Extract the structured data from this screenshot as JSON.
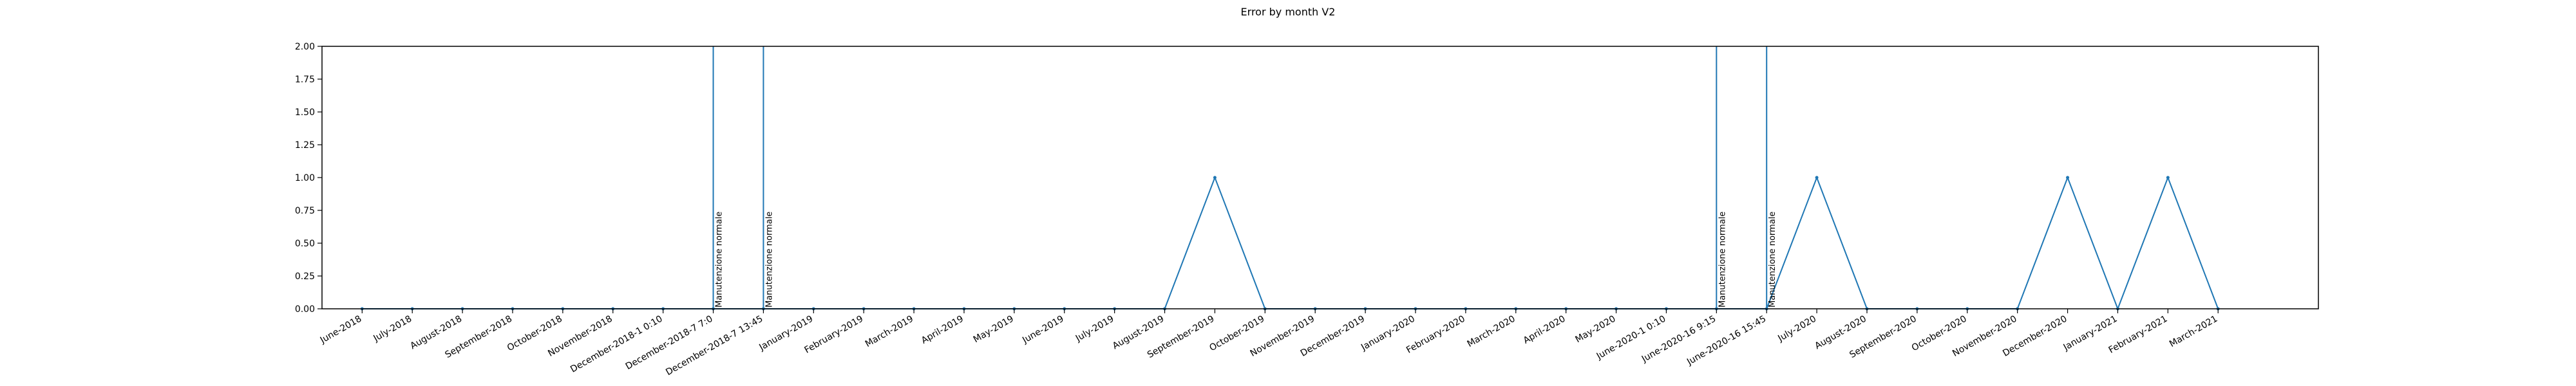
{
  "chart_data": {
    "type": "line",
    "title": "Error by month V2",
    "xlabel": "",
    "ylabel": "",
    "ylim": [
      0,
      2
    ],
    "xlim": [
      -0.8,
      39.0
    ],
    "y_ticks": [
      "0.00",
      "0.25",
      "0.50",
      "0.75",
      "1.00",
      "1.25",
      "1.50",
      "1.75",
      "2.00"
    ],
    "grid": false,
    "legend": "none",
    "line_color": "#1f77b4",
    "categories": [
      "June-2018",
      "July-2018",
      "August-2018",
      "September-2018",
      "October-2018",
      "November-2018",
      "December-2018-1 0:10",
      "December-2018-7 7:0",
      "December-2018-7 13:45",
      "January-2019",
      "February-2019",
      "March-2019",
      "April-2019",
      "May-2019",
      "June-2019",
      "July-2019",
      "August-2019",
      "September-2019",
      "October-2019",
      "November-2019",
      "December-2019",
      "January-2020",
      "February-2020",
      "March-2020",
      "April-2020",
      "May-2020",
      "June-2020-1 0:10",
      "June-2020-16 9:15",
      "June-2020-16 15:45",
      "July-2020",
      "August-2020",
      "September-2020",
      "October-2020",
      "November-2020",
      "December-2020",
      "January-2021",
      "February-2021",
      "March-2021"
    ],
    "values": [
      0,
      0,
      0,
      0,
      0,
      0,
      0,
      0,
      0,
      0,
      0,
      0,
      0,
      0,
      0,
      0,
      0,
      1,
      0,
      0,
      0,
      0,
      0,
      0,
      0,
      0,
      0,
      0,
      0,
      1,
      0,
      0,
      0,
      0,
      1,
      0,
      1,
      0
    ],
    "annotations": [
      {
        "text": "Manutenzione normale",
        "x_index": 7
      },
      {
        "text": "Manutenzione normale",
        "x_index": 8
      },
      {
        "text": "Manutenzione normale",
        "x_index": 27
      },
      {
        "text": "Manutenzione normale",
        "x_index": 28
      }
    ]
  }
}
